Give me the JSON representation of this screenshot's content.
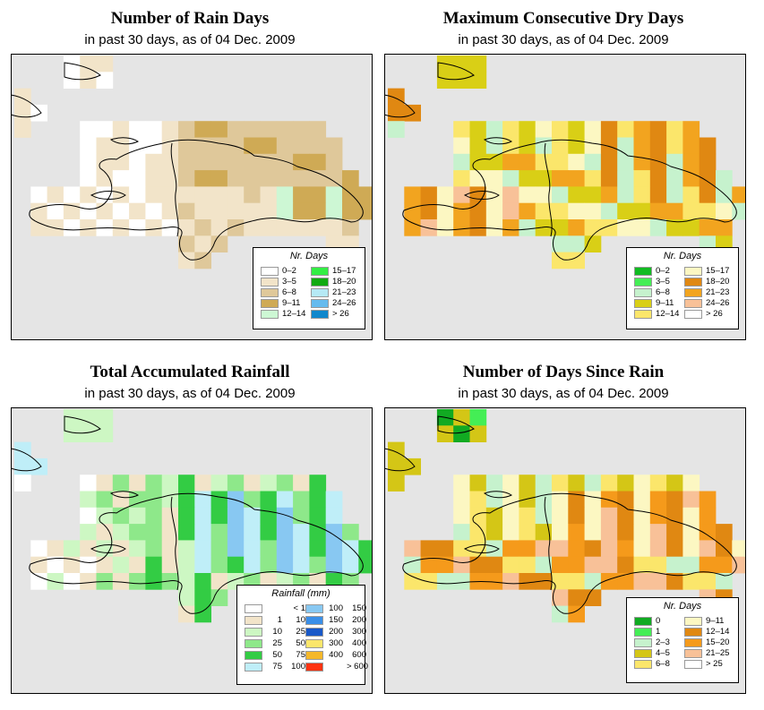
{
  "panels": [
    {
      "title": "Number of Rain Days",
      "subtitle": "in past 30 days, as of  04 Dec. 2009",
      "legend_title": "Nr. Days",
      "legend_items": [
        {
          "label": "0–2",
          "color": "#ffffff"
        },
        {
          "label": "3–5",
          "color": "#f2e4c9"
        },
        {
          "label": "6–8",
          "color": "#dfc89a"
        },
        {
          "label": "9–11",
          "color": "#cfaa55"
        },
        {
          "label": "12–14",
          "color": "#cdf7d4"
        },
        {
          "label": "15–17",
          "color": "#33ee44"
        },
        {
          "label": "18–20",
          "color": "#11aa11"
        },
        {
          "label": "21–23",
          "color": "#b5e9f5"
        },
        {
          "label": "24–26",
          "color": "#66bbee"
        },
        {
          "label": "> 26",
          "color": "#1188cc"
        }
      ]
    },
    {
      "title": "Maximum Consecutive Dry Days",
      "subtitle": "in past 30 days, as of  04 Dec. 2009",
      "legend_title": "Nr. Days",
      "legend_items": [
        {
          "label": "0–2",
          "color": "#11bb22"
        },
        {
          "label": "3–5",
          "color": "#44ee55"
        },
        {
          "label": "6–8",
          "color": "#c6f2cd"
        },
        {
          "label": "9–11",
          "color": "#d9cf16"
        },
        {
          "label": "12–14",
          "color": "#fbe66b"
        },
        {
          "label": "15–17",
          "color": "#fcf7c2"
        },
        {
          "label": "18–20",
          "color": "#e08812"
        },
        {
          "label": "21–23",
          "color": "#f2a41f"
        },
        {
          "label": "24–26",
          "color": "#f8c198"
        },
        {
          "label": "> 26",
          "color": "#ffffff"
        }
      ]
    },
    {
      "title": "Total Accumulated Rainfall",
      "subtitle": "in past 30 days, as of  04 Dec. 2009",
      "legend_title": "Rainfall (mm)",
      "legend_items": [
        {
          "lo": "",
          "hi": "< 1",
          "color": "#ffffff"
        },
        {
          "lo": "1",
          "hi": "10",
          "color": "#f2e4c9"
        },
        {
          "lo": "10",
          "hi": "25",
          "color": "#cdf7c3"
        },
        {
          "lo": "25",
          "hi": "50",
          "color": "#8ee88a"
        },
        {
          "lo": "50",
          "hi": "75",
          "color": "#33cc44"
        },
        {
          "lo": "75",
          "hi": "100",
          "color": "#bfeef8"
        },
        {
          "lo": "100",
          "hi": "150",
          "color": "#88c8f2"
        },
        {
          "lo": "150",
          "hi": "200",
          "color": "#3a8fe8"
        },
        {
          "lo": "200",
          "hi": "300",
          "color": "#1858c8"
        },
        {
          "lo": "300",
          "hi": "400",
          "color": "#fbe66b"
        },
        {
          "lo": "400",
          "hi": "600",
          "color": "#f5b82a"
        },
        {
          "lo": "",
          "hi": "> 600",
          "color": "#ff3311"
        }
      ]
    },
    {
      "title": "Number of Days Since Rain",
      "subtitle": "in past 30 days, as of  04 Dec. 2009",
      "legend_title": "Nr. Days",
      "legend_items": [
        {
          "label": "0",
          "color": "#11aa22"
        },
        {
          "label": "1",
          "color": "#44ee55"
        },
        {
          "label": "2–3",
          "color": "#c6f2cd"
        },
        {
          "label": "4–5",
          "color": "#d4c616"
        },
        {
          "label": "6–8",
          "color": "#fbe66b"
        },
        {
          "label": "9–11",
          "color": "#fcf7c2"
        },
        {
          "label": "12–14",
          "color": "#e08812"
        },
        {
          "label": "15–20",
          "color": "#f59a1b"
        },
        {
          "label": "21–25",
          "color": "#f8c198"
        },
        {
          "label": "> 25",
          "color": "#ffffff"
        }
      ]
    }
  ],
  "colors": {
    "background": "#e5e5e5",
    "border": "#000000",
    "coast": "#000000"
  }
}
